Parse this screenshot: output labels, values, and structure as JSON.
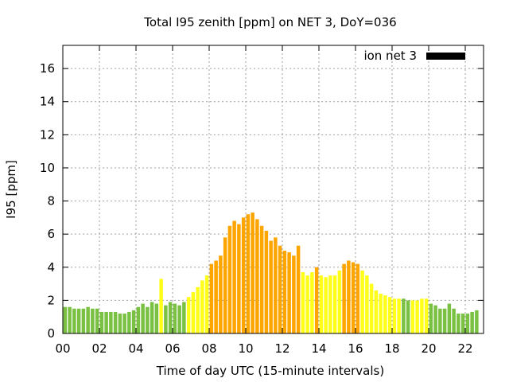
{
  "chart_data": {
    "type": "bar",
    "title": "Total I95 zenith [ppm] on NET 3, DoY=036",
    "xlabel": "Time of day UTC (15-minute intervals)",
    "ylabel": "I95 [ppm]",
    "xlim": [
      0,
      23
    ],
    "ylim": [
      0,
      17.4
    ],
    "interval_hours": 0.25,
    "grid": true,
    "legend": {
      "label": "ion net 3",
      "position": "top-right",
      "color": "#000000"
    },
    "x_ticks": [
      {
        "value": 0,
        "label": "00"
      },
      {
        "value": 2,
        "label": "02"
      },
      {
        "value": 4,
        "label": "04"
      },
      {
        "value": 6,
        "label": "06"
      },
      {
        "value": 8,
        "label": "08"
      },
      {
        "value": 10,
        "label": "10"
      },
      {
        "value": 12,
        "label": "12"
      },
      {
        "value": 14,
        "label": "14"
      },
      {
        "value": 16,
        "label": "16"
      },
      {
        "value": 18,
        "label": "18"
      },
      {
        "value": 20,
        "label": "20"
      },
      {
        "value": 22,
        "label": "22"
      }
    ],
    "y_ticks": [
      {
        "value": 0,
        "label": "0"
      },
      {
        "value": 2,
        "label": "2"
      },
      {
        "value": 4,
        "label": "4"
      },
      {
        "value": 6,
        "label": "6"
      },
      {
        "value": 8,
        "label": "8"
      },
      {
        "value": 10,
        "label": "10"
      },
      {
        "value": 12,
        "label": "12"
      },
      {
        "value": 14,
        "label": "14"
      },
      {
        "value": 16,
        "label": "16"
      }
    ],
    "level_colors": {
      "g": "#7ac143",
      "y": "#ffff1a",
      "o": "#ffa500"
    },
    "values": [
      1.6,
      1.6,
      1.5,
      1.5,
      1.5,
      1.6,
      1.5,
      1.5,
      1.3,
      1.3,
      1.3,
      1.3,
      1.2,
      1.2,
      1.3,
      1.4,
      1.6,
      1.8,
      1.6,
      1.9,
      1.8,
      3.3,
      1.7,
      1.9,
      1.8,
      1.7,
      1.9,
      2.2,
      2.5,
      2.8,
      3.2,
      3.5,
      4.2,
      4.4,
      4.7,
      5.8,
      6.5,
      6.8,
      6.6,
      7.0,
      7.2,
      7.3,
      6.9,
      6.5,
      6.2,
      5.6,
      5.8,
      5.3,
      5.0,
      4.9,
      4.7,
      5.3,
      3.7,
      3.5,
      3.7,
      4.0,
      3.5,
      3.4,
      3.5,
      3.5,
      3.8,
      4.2,
      4.4,
      4.3,
      4.2,
      3.8,
      3.5,
      3.0,
      2.6,
      2.4,
      2.3,
      2.2,
      2.1,
      2.1,
      2.1,
      2.0,
      2.0,
      2.0,
      2.1,
      2.1,
      1.8,
      1.7,
      1.5,
      1.5,
      1.8,
      1.5,
      1.2,
      1.2,
      1.2,
      1.3,
      1.4
    ],
    "levels": [
      "g",
      "g",
      "g",
      "g",
      "g",
      "g",
      "g",
      "g",
      "g",
      "g",
      "g",
      "g",
      "g",
      "g",
      "g",
      "g",
      "g",
      "g",
      "g",
      "g",
      "g",
      "y",
      "g",
      "g",
      "g",
      "g",
      "g",
      "y",
      "y",
      "y",
      "y",
      "y",
      "o",
      "o",
      "o",
      "o",
      "o",
      "o",
      "o",
      "o",
      "o",
      "o",
      "o",
      "o",
      "o",
      "o",
      "o",
      "o",
      "o",
      "o",
      "o",
      "o",
      "y",
      "y",
      "y",
      "o",
      "y",
      "y",
      "y",
      "y",
      "y",
      "o",
      "o",
      "o",
      "o",
      "y",
      "y",
      "y",
      "y",
      "y",
      "y",
      "y",
      "y",
      "y",
      "g",
      "g",
      "y",
      "y",
      "y",
      "y",
      "g",
      "g",
      "g",
      "g",
      "g",
      "g",
      "g",
      "g",
      "g",
      "g",
      "g"
    ]
  }
}
